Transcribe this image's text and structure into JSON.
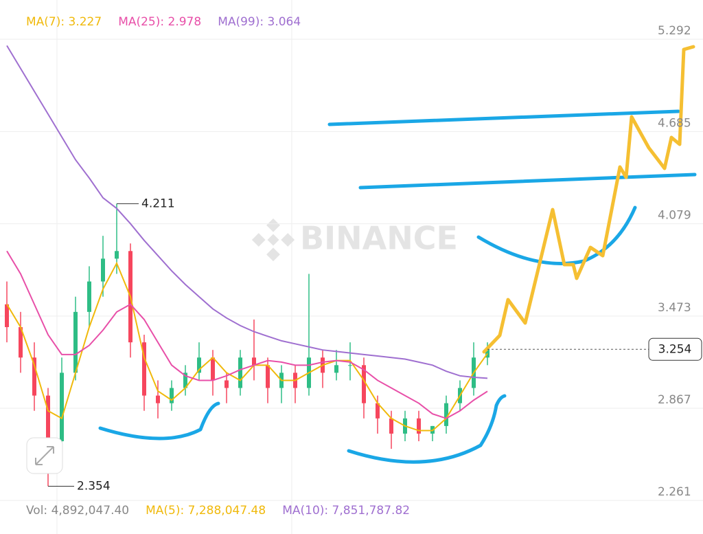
{
  "chart_data": {
    "type": "candlestick",
    "watermark": "BINANCE",
    "ylim": [
      2.23,
      5.55
    ],
    "yticks": [
      5.292,
      4.685,
      4.079,
      3.473,
      2.867,
      2.261
    ],
    "grid": true,
    "up_color": "#2ebd85",
    "down_color": "#f6465d",
    "open": [
      3.55,
      3.4,
      3.2,
      2.95,
      2.65,
      3.1,
      3.5,
      3.7,
      3.85,
      3.9,
      3.3,
      2.95,
      2.9,
      3.0,
      3.1,
      3.2,
      3.05,
      3.0,
      3.2,
      3.15,
      3.0,
      3.1,
      3.0,
      3.2,
      3.1,
      3.15,
      3.15,
      2.9,
      2.8,
      2.7,
      2.8,
      2.7,
      2.75,
      2.9,
      3.0,
      3.2
    ],
    "high": [
      3.7,
      3.5,
      3.3,
      3.0,
      3.2,
      3.6,
      3.8,
      4.0,
      4.211,
      3.95,
      3.35,
      3.05,
      3.05,
      3.15,
      3.3,
      3.25,
      3.1,
      3.25,
      3.45,
      3.2,
      3.15,
      3.15,
      3.75,
      3.25,
      3.25,
      3.3,
      3.2,
      2.95,
      2.85,
      2.85,
      2.85,
      2.75,
      2.95,
      3.05,
      3.3,
      3.3
    ],
    "low": [
      3.3,
      3.1,
      2.85,
      2.354,
      2.6,
      3.05,
      3.4,
      3.6,
      3.75,
      3.2,
      2.85,
      2.8,
      2.85,
      2.95,
      3.05,
      2.95,
      2.9,
      2.95,
      3.05,
      2.9,
      2.9,
      2.9,
      2.95,
      3.0,
      3.05,
      3.05,
      2.8,
      2.7,
      2.6,
      2.65,
      2.65,
      2.65,
      2.7,
      2.85,
      2.95,
      3.15
    ],
    "close": [
      3.4,
      3.2,
      2.95,
      2.65,
      3.1,
      3.5,
      3.7,
      3.85,
      3.9,
      3.3,
      2.95,
      2.9,
      3.0,
      3.1,
      3.2,
      3.05,
      3.0,
      3.2,
      3.15,
      3.0,
      3.1,
      3.0,
      3.2,
      3.1,
      3.15,
      3.15,
      2.9,
      2.8,
      2.7,
      2.8,
      2.7,
      2.75,
      2.9,
      3.0,
      3.2,
      3.254
    ],
    "series": [
      {
        "name": "MA(7): 3.227",
        "color": "#f0b90b",
        "values": [
          3.55,
          3.4,
          3.15,
          2.85,
          2.8,
          3.1,
          3.4,
          3.65,
          3.82,
          3.6,
          3.2,
          2.98,
          2.92,
          3.0,
          3.12,
          3.2,
          3.1,
          3.05,
          3.15,
          3.15,
          3.05,
          3.05,
          3.1,
          3.15,
          3.18,
          3.18,
          3.05,
          2.9,
          2.8,
          2.75,
          2.72,
          2.72,
          2.8,
          2.95,
          3.1,
          3.227
        ]
      },
      {
        "name": "MA(25): 2.978",
        "color": "#e84fa8",
        "values": [
          3.9,
          3.75,
          3.55,
          3.35,
          3.22,
          3.22,
          3.28,
          3.38,
          3.5,
          3.55,
          3.45,
          3.3,
          3.15,
          3.08,
          3.05,
          3.05,
          3.08,
          3.12,
          3.15,
          3.18,
          3.17,
          3.15,
          3.15,
          3.17,
          3.18,
          3.17,
          3.12,
          3.05,
          3.0,
          2.95,
          2.9,
          2.83,
          2.8,
          2.85,
          2.92,
          2.978
        ]
      },
      {
        "name": "MA(99): 3.064",
        "color": "#9f6fd0",
        "values": [
          5.25,
          5.1,
          4.95,
          4.8,
          4.65,
          4.5,
          4.38,
          4.25,
          4.18,
          4.08,
          3.97,
          3.87,
          3.77,
          3.68,
          3.6,
          3.52,
          3.46,
          3.41,
          3.37,
          3.34,
          3.31,
          3.29,
          3.27,
          3.25,
          3.24,
          3.23,
          3.22,
          3.21,
          3.2,
          3.19,
          3.17,
          3.15,
          3.11,
          3.08,
          3.07,
          3.064
        ]
      }
    ],
    "volume_labels": [
      {
        "text": "Vol: 4,892,047.40",
        "color": "#888888"
      },
      {
        "text": "MA(5): 7,288,047.48",
        "color": "#f0b90b"
      },
      {
        "text": "MA(10): 7,851,787.82",
        "color": "#9f6fd0"
      }
    ]
  }
}
